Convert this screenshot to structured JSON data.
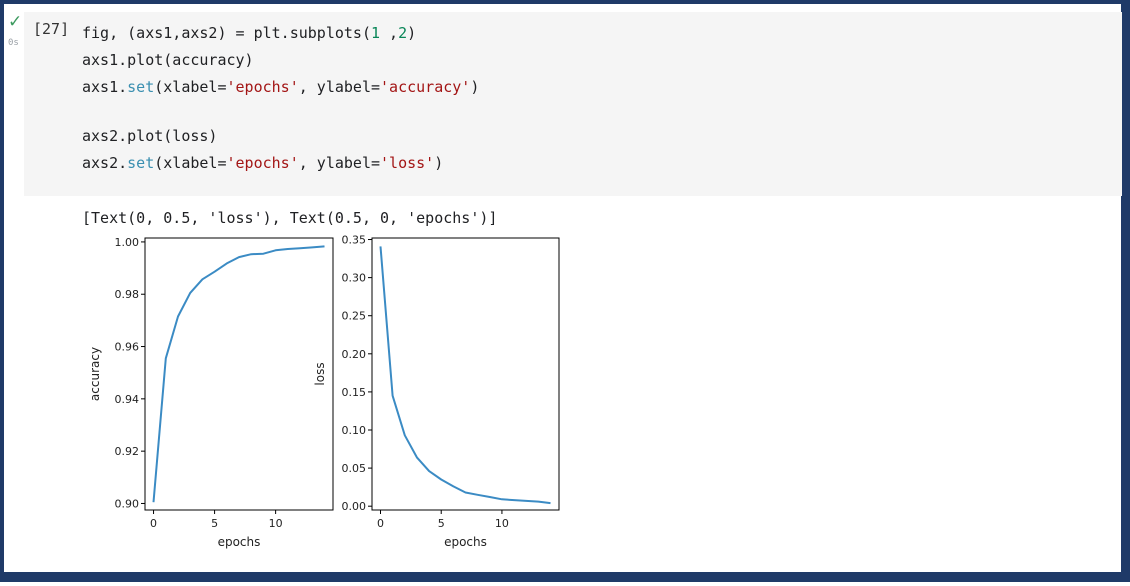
{
  "cell": {
    "execution_count": "[27]",
    "status": "✓",
    "timing": "0s",
    "code_lines": [
      [
        {
          "t": "fig, (axs1,axs2) = plt.subplots("
        },
        {
          "t": "1",
          "c": "num"
        },
        {
          "t": " ,"
        },
        {
          "t": "2",
          "c": "num"
        },
        {
          "t": ")"
        }
      ],
      [
        {
          "t": "axs1.plot(accuracy)"
        }
      ],
      [
        {
          "t": "axs1."
        },
        {
          "t": "set",
          "c": "fn"
        },
        {
          "t": "(xlabel="
        },
        {
          "t": "'epochs'",
          "c": "str"
        },
        {
          "t": ", ylabel="
        },
        {
          "t": "'accuracy'",
          "c": "str"
        },
        {
          "t": ")"
        }
      ],
      [],
      [
        {
          "t": "axs2.plot(loss)"
        }
      ],
      [
        {
          "t": "axs2."
        },
        {
          "t": "set",
          "c": "fn"
        },
        {
          "t": "(xlabel="
        },
        {
          "t": "'epochs'",
          "c": "str"
        },
        {
          "t": ", ylabel="
        },
        {
          "t": "'loss'",
          "c": "str"
        },
        {
          "t": ")"
        }
      ]
    ],
    "output_text": "[Text(0, 0.5, 'loss'), Text(0.5, 0, 'epochs')]"
  },
  "colors": {
    "line": "#3b8bc4",
    "accent": "#1f3a68"
  },
  "chart_data": [
    {
      "type": "line",
      "xlabel": "epochs",
      "ylabel": "accuracy",
      "xlim": [
        -0.7,
        14.7
      ],
      "ylim": [
        0.8975,
        1.0015
      ],
      "xticks": [
        0,
        5,
        10
      ],
      "xtick_labels": [
        "0",
        "5",
        "10"
      ],
      "yticks": [
        0.9,
        0.92,
        0.94,
        0.96,
        0.98,
        1.0
      ],
      "ytick_labels": [
        "0.90",
        "0.92",
        "0.94",
        "0.96",
        "0.98",
        "1.00"
      ],
      "x": [
        0,
        1,
        2,
        3,
        4,
        5,
        6,
        7,
        8,
        9,
        10,
        11,
        12,
        13,
        14
      ],
      "values": [
        0.9005,
        0.9555,
        0.9715,
        0.9805,
        0.9857,
        0.9886,
        0.9918,
        0.9942,
        0.9953,
        0.9955,
        0.9968,
        0.9973,
        0.9976,
        0.9979,
        0.9983
      ]
    },
    {
      "type": "line",
      "xlabel": "epochs",
      "ylabel": "loss",
      "xlim": [
        -0.7,
        14.7
      ],
      "ylim": [
        -0.005,
        0.352
      ],
      "xticks": [
        0,
        5,
        10
      ],
      "xtick_labels": [
        "0",
        "5",
        "10"
      ],
      "yticks": [
        0.0,
        0.05,
        0.1,
        0.15,
        0.2,
        0.25,
        0.3,
        0.35
      ],
      "ytick_labels": [
        "0.00",
        "0.05",
        "0.10",
        "0.15",
        "0.20",
        "0.25",
        "0.30",
        "0.35"
      ],
      "x": [
        0,
        1,
        2,
        3,
        4,
        5,
        6,
        7,
        8,
        9,
        10,
        11,
        12,
        13,
        14
      ],
      "values": [
        0.341,
        0.145,
        0.093,
        0.064,
        0.046,
        0.035,
        0.026,
        0.018,
        0.015,
        0.012,
        0.009,
        0.008,
        0.007,
        0.006,
        0.004
      ]
    }
  ]
}
